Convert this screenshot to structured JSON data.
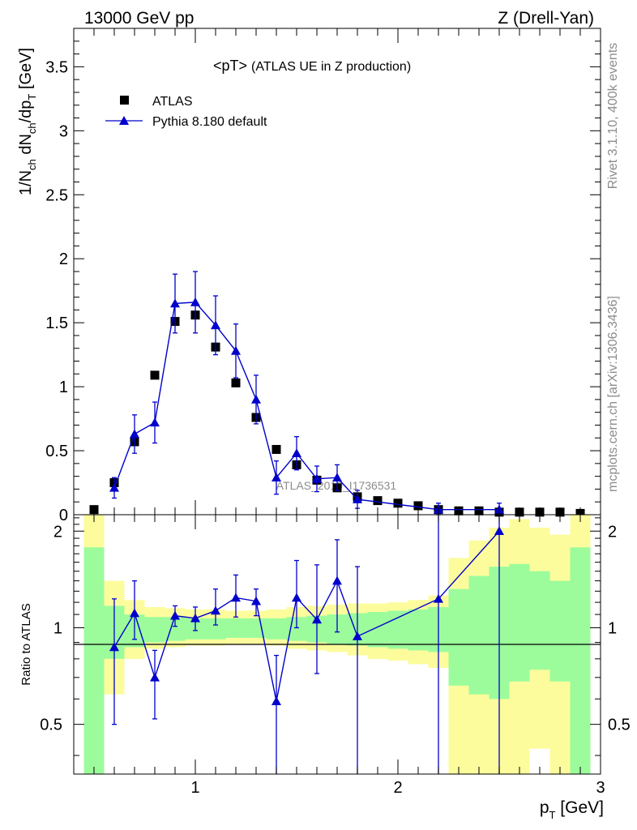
{
  "header": {
    "left": "13000 GeV pp",
    "right": "Z (Drell-Yan)"
  },
  "side_text": {
    "rivet": "Rivet 3.1.10,  400k events",
    "mcplots": "mcplots.cern.ch [arXiv:1306.3436]"
  },
  "colors": {
    "data": "#000000",
    "mc": "#0000cc",
    "band_inner": "#9cfc9c",
    "band_outer": "#fcfc9c",
    "watermark": "#8c8c8c"
  },
  "chart_data": [
    {
      "type": "scatter",
      "panel": "main",
      "title": "<pT> (ATLAS UE in Z production)",
      "title_main": "<pT>",
      "title_sub": "(ATLAS UE in Z production)",
      "ylabel": "1/N_ch dN_ch/dp_T [GeV]",
      "xlim": [
        0.4,
        3.0
      ],
      "ylim": [
        0,
        3.8
      ],
      "yticks": [
        0,
        0.5,
        1,
        1.5,
        2,
        2.5,
        3,
        3.5
      ],
      "ytick_labels": [
        "0",
        "0.5",
        "1",
        "1.5",
        "2",
        "2.5",
        "3",
        "3.5"
      ],
      "watermark": "ATLAS_2019_I1736531",
      "legend": [
        "ATLAS",
        "Pythia 8.180 default"
      ],
      "series": [
        {
          "name": "ATLAS",
          "marker": "square",
          "x": [
            0.5,
            0.6,
            0.7,
            0.8,
            0.9,
            1.0,
            1.1,
            1.2,
            1.3,
            1.4,
            1.5,
            1.6,
            1.7,
            1.8,
            1.9,
            2.0,
            2.1,
            2.2,
            2.3,
            2.4,
            2.5,
            2.6,
            2.7,
            2.8,
            2.9
          ],
          "y": [
            0.04,
            0.25,
            0.57,
            1.09,
            1.51,
            1.56,
            1.31,
            1.03,
            0.76,
            0.51,
            0.39,
            0.27,
            0.21,
            0.14,
            0.11,
            0.09,
            0.07,
            0.04,
            0.03,
            0.03,
            0.02,
            0.02,
            0.02,
            0.02,
            0.01
          ]
        },
        {
          "name": "Pythia 8.180 default",
          "marker": "triangle",
          "x": [
            0.6,
            0.7,
            0.8,
            0.9,
            1.0,
            1.1,
            1.2,
            1.3,
            1.4,
            1.5,
            1.6,
            1.7,
            1.8,
            2.2,
            2.5
          ],
          "y": [
            0.21,
            0.63,
            0.72,
            1.65,
            1.66,
            1.48,
            1.28,
            0.9,
            0.29,
            0.48,
            0.28,
            0.29,
            0.12,
            0.04,
            0.04
          ],
          "yerr": [
            0.08,
            0.15,
            0.16,
            0.23,
            0.24,
            0.23,
            0.21,
            0.19,
            0.13,
            0.13,
            0.1,
            0.1,
            0.07,
            0.05,
            0.05
          ]
        }
      ]
    },
    {
      "type": "scatter",
      "panel": "ratio",
      "ylabel": "Ratio to ATLAS",
      "xlabel": "p_T [GeV]",
      "xlim": [
        0.4,
        3.0
      ],
      "ylim": [
        0.35,
        2.25
      ],
      "yticks": [
        0.5,
        1,
        2
      ],
      "ytick_labels": [
        "0.5",
        "1",
        "2"
      ],
      "xticks": [
        1,
        2,
        3
      ],
      "xtick_labels": [
        "1",
        "2",
        "3"
      ],
      "bands": {
        "edges": [
          0.45,
          0.55,
          0.65,
          0.75,
          0.85,
          0.95,
          1.05,
          1.15,
          1.25,
          1.35,
          1.45,
          1.55,
          1.65,
          1.75,
          1.85,
          1.95,
          2.05,
          2.15,
          2.25,
          2.35,
          2.45,
          2.55,
          2.65,
          2.75,
          2.85,
          2.95
        ],
        "outer_low": [
          0.3,
          0.62,
          0.8,
          0.86,
          0.87,
          0.88,
          0.88,
          0.89,
          0.89,
          0.88,
          0.86,
          0.85,
          0.84,
          0.82,
          0.8,
          0.79,
          0.77,
          0.75,
          0.3,
          0.3,
          0.3,
          0.35,
          0.42,
          0.3,
          0.3
        ],
        "outer_high": [
          2.25,
          1.4,
          1.22,
          1.16,
          1.15,
          1.14,
          1.14,
          1.13,
          1.13,
          1.14,
          1.16,
          1.17,
          1.18,
          1.19,
          1.19,
          1.2,
          1.22,
          1.26,
          1.65,
          1.87,
          2.05,
          2.18,
          2.05,
          1.95,
          2.25
        ],
        "inner_low": [
          0.3,
          0.8,
          0.87,
          0.9,
          0.91,
          0.92,
          0.92,
          0.93,
          0.93,
          0.92,
          0.91,
          0.9,
          0.89,
          0.88,
          0.87,
          0.86,
          0.85,
          0.84,
          0.66,
          0.62,
          0.6,
          0.68,
          0.74,
          0.68,
          0.3
        ],
        "inner_high": [
          1.78,
          1.17,
          1.1,
          1.08,
          1.08,
          1.07,
          1.07,
          1.07,
          1.07,
          1.07,
          1.08,
          1.09,
          1.1,
          1.11,
          1.12,
          1.13,
          1.14,
          1.16,
          1.32,
          1.45,
          1.55,
          1.58,
          1.5,
          1.4,
          1.78
        ]
      },
      "series": [
        {
          "name": "Pythia 8.180 default / ATLAS",
          "marker": "triangle",
          "x": [
            0.6,
            0.7,
            0.8,
            0.9,
            1.0,
            1.1,
            1.2,
            1.3,
            1.4,
            1.5,
            1.6,
            1.7,
            1.8,
            2.2,
            2.5
          ],
          "y": [
            0.87,
            1.11,
            0.7,
            1.09,
            1.07,
            1.13,
            1.24,
            1.21,
            0.59,
            1.24,
            1.06,
            1.4,
            0.94,
            1.23,
            2.0
          ],
          "ylow": [
            0.5,
            0.92,
            0.52,
            1.01,
            0.98,
            1.02,
            1.08,
            1.09,
            0.35,
            1.0,
            0.72,
            0.97,
            0.35,
            0.35,
            0.35
          ],
          "yhigh": [
            1.23,
            1.4,
            0.85,
            1.17,
            1.16,
            1.32,
            1.46,
            1.32,
            0.82,
            1.62,
            1.57,
            1.88,
            1.55,
            2.25,
            2.25
          ]
        }
      ]
    }
  ]
}
